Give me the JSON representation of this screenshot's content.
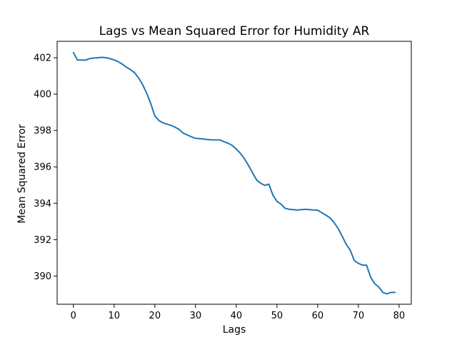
{
  "chart_data": {
    "type": "line",
    "title": "Lags vs Mean Squared Error for Humidity AR",
    "xlabel": "Lags",
    "ylabel": "Mean Squared Error",
    "xlim": [
      -4,
      83
    ],
    "ylim": [
      388.45,
      402.9
    ],
    "xticks": [
      0,
      10,
      20,
      30,
      40,
      50,
      60,
      70,
      80
    ],
    "yticks": [
      390,
      392,
      394,
      396,
      398,
      400,
      402
    ],
    "grid": false,
    "line_color": "#1f77b4",
    "series": [
      {
        "x": [
          0,
          1,
          2,
          3,
          4,
          5,
          6,
          7,
          8,
          9,
          10,
          11,
          12,
          13,
          14,
          15,
          16,
          17,
          18,
          19,
          20,
          21,
          22,
          23,
          24,
          25,
          26,
          27,
          28,
          29,
          30,
          31,
          32,
          33,
          34,
          35,
          36,
          37,
          38,
          39,
          40,
          41,
          42,
          43,
          44,
          45,
          46,
          47,
          48,
          49,
          50,
          51,
          52,
          53,
          54,
          55,
          56,
          57,
          58,
          59,
          60,
          61,
          62,
          63,
          64,
          65,
          66,
          67,
          68,
          69,
          70,
          71,
          72,
          73,
          74,
          75,
          76,
          77,
          78,
          79
        ],
        "y": [
          402.28,
          401.87,
          401.87,
          401.87,
          401.95,
          401.98,
          402.0,
          402.02,
          402.0,
          401.95,
          401.88,
          401.78,
          401.65,
          401.48,
          401.35,
          401.18,
          400.9,
          400.52,
          400.05,
          399.48,
          398.8,
          398.55,
          398.42,
          398.35,
          398.28,
          398.18,
          398.05,
          397.85,
          397.75,
          397.65,
          397.57,
          397.55,
          397.53,
          397.5,
          397.48,
          397.48,
          397.48,
          397.38,
          397.3,
          397.18,
          396.98,
          396.75,
          396.45,
          396.08,
          395.68,
          395.28,
          395.1,
          394.98,
          395.05,
          394.45,
          394.1,
          393.95,
          393.72,
          393.67,
          393.65,
          393.63,
          393.65,
          393.67,
          393.65,
          393.63,
          393.62,
          393.48,
          393.35,
          393.2,
          392.95,
          392.62,
          392.2,
          391.75,
          391.42,
          390.85,
          390.7,
          390.6,
          390.6,
          389.95,
          389.58,
          389.4,
          389.1,
          389.02,
          389.1,
          389.1
        ]
      }
    ]
  }
}
